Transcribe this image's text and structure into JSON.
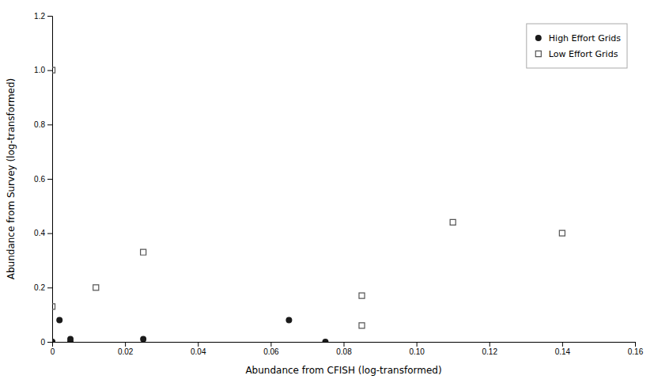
{
  "chart_data": {
    "type": "scatter",
    "xlabel": "Abundance from CFISH (log-transformed)",
    "ylabel": "Abundance from Survey (log-transformed)",
    "series": [
      {
        "name": "High Effort Grids",
        "color": "#1a1a1a",
        "marker": "circle",
        "x": [
          0.002,
          0.005,
          0.0,
          0.0,
          0.005,
          0.025,
          0.065,
          0.075
        ],
        "values": [
          0.08,
          0.01,
          0.0,
          0.0,
          0.0,
          0.01,
          0.08,
          0.0
        ]
      },
      {
        "name": "Low Effort Grids",
        "color": "#555555",
        "marker": "square-open",
        "x": [
          0.0,
          0.0,
          0.012,
          0.025,
          0.085,
          0.085,
          0.11,
          0.14
        ],
        "values": [
          1.0,
          0.13,
          0.2,
          0.33,
          0.17,
          0.06,
          0.44,
          0.4
        ]
      }
    ],
    "xlim": [
      0,
      0.16
    ],
    "ylim": [
      0,
      1.2
    ],
    "xticks": [
      0,
      0.02,
      0.04,
      0.06,
      0.08,
      {
        "value": 0.1,
        "label": "0.10"
      },
      0.12,
      0.14,
      0.16
    ],
    "yticks": [
      0,
      0.2,
      0.4,
      0.6,
      0.8,
      {
        "value": 1.0,
        "label": "1.0"
      },
      1.2
    ],
    "grid": false,
    "legend": "upper right"
  }
}
